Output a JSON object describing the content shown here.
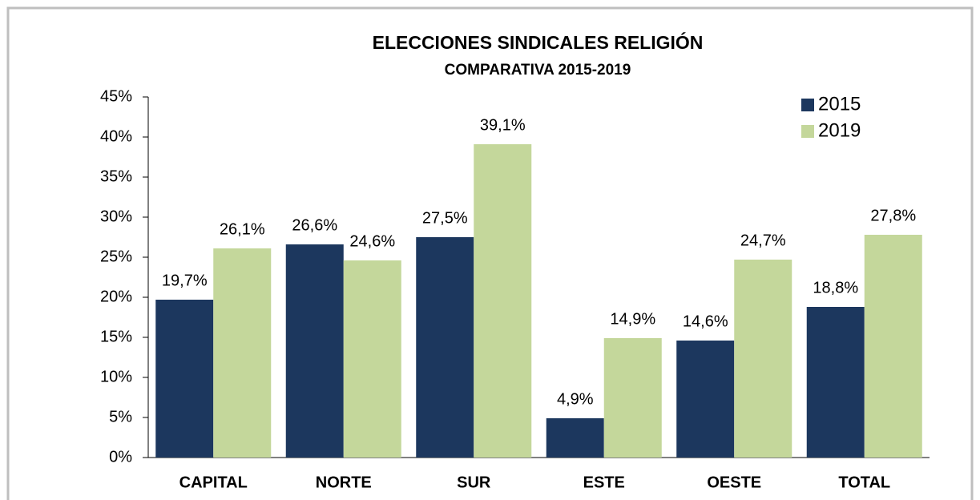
{
  "chart_data": {
    "type": "bar",
    "title": "ELECCIONES SINDICALES RELIGIÓN",
    "subtitle": "COMPARATIVA 2015-2019",
    "categories": [
      "CAPITAL",
      "NORTE",
      "SUR",
      "ESTE",
      "OESTE",
      "TOTAL"
    ],
    "series": [
      {
        "name": "2015",
        "color": "#1c375e",
        "values": [
          19.7,
          26.6,
          27.5,
          4.9,
          14.6,
          18.8
        ],
        "value_labels": [
          "19,7%",
          "26,6%",
          "27,5%",
          "4,9%",
          "14,6%",
          "18,8%"
        ]
      },
      {
        "name": "2019",
        "color": "#c4d79b",
        "values": [
          26.1,
          24.6,
          39.1,
          14.9,
          24.7,
          27.8
        ],
        "value_labels": [
          "26,1%",
          "24,6%",
          "39,1%",
          "14,9%",
          "24,7%",
          "27,8%"
        ]
      }
    ],
    "ylim": [
      0,
      45
    ],
    "yticks": [
      {
        "value": 0,
        "label": "0%"
      },
      {
        "value": 5,
        "label": "5%"
      },
      {
        "value": 10,
        "label": "10%"
      },
      {
        "value": 15,
        "label": "15%"
      },
      {
        "value": 20,
        "label": "20%"
      },
      {
        "value": 25,
        "label": "25%"
      },
      {
        "value": 30,
        "label": "30%"
      },
      {
        "value": 35,
        "label": "35%"
      },
      {
        "value": 40,
        "label": "40%"
      },
      {
        "value": 45,
        "label": "45%"
      }
    ],
    "legend": "top-right"
  }
}
